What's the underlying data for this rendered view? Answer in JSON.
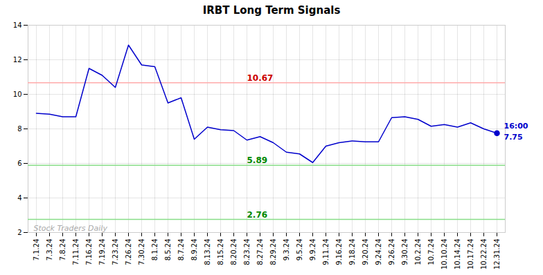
{
  "chart_data": {
    "type": "line",
    "title": "IRBT Long Term Signals",
    "categories": [
      "7.1.24",
      "7.3.24",
      "7.8.24",
      "7.11.24",
      "7.16.24",
      "7.19.24",
      "7.23.24",
      "7.26.24",
      "7.30.24",
      "8.1.24",
      "8.5.24",
      "8.7.24",
      "8.9.24",
      "8.13.24",
      "8.15.24",
      "8.20.24",
      "8.23.24",
      "8.27.24",
      "8.29.24",
      "9.3.24",
      "9.5.24",
      "9.9.24",
      "9.11.24",
      "9.16.24",
      "9.18.24",
      "9.20.24",
      "9.24.24",
      "9.26.24",
      "9.30.24",
      "10.2.24",
      "10.7.24",
      "10.10.24",
      "10.14.24",
      "10.17.24",
      "10.22.24",
      "12.31.24"
    ],
    "values": [
      8.9,
      8.85,
      8.7,
      8.7,
      11.5,
      11.1,
      10.4,
      12.85,
      11.7,
      11.6,
      9.5,
      9.8,
      7.4,
      8.1,
      7.95,
      7.9,
      7.35,
      7.55,
      7.2,
      6.65,
      6.55,
      6.05,
      7.0,
      7.2,
      7.3,
      7.25,
      7.25,
      8.65,
      8.7,
      8.55,
      8.15,
      8.25,
      8.1,
      8.35,
      8.0,
      7.75
    ],
    "color": "#0000cc",
    "marker": "circle",
    "ylim": [
      2,
      14
    ],
    "yticks": [
      2,
      4,
      6,
      8,
      10,
      12,
      14
    ],
    "grid": true,
    "reference_lines": [
      {
        "value": 10.67,
        "label": "10.67",
        "label_at": "8.23.24",
        "color": "#ffaaaa",
        "label_color": "#cc0000"
      },
      {
        "value": 5.89,
        "label": "5.89",
        "label_at": "8.23.24",
        "color": "#88dd88",
        "label_color": "#008800"
      },
      {
        "value": 2.76,
        "label": "2.76",
        "label_at": "8.23.24",
        "color": "#88dd88",
        "label_color": "#008800"
      }
    ],
    "end_labels": [
      "16:00",
      "7.75"
    ],
    "watermark": "Stock Traders Daily"
  }
}
